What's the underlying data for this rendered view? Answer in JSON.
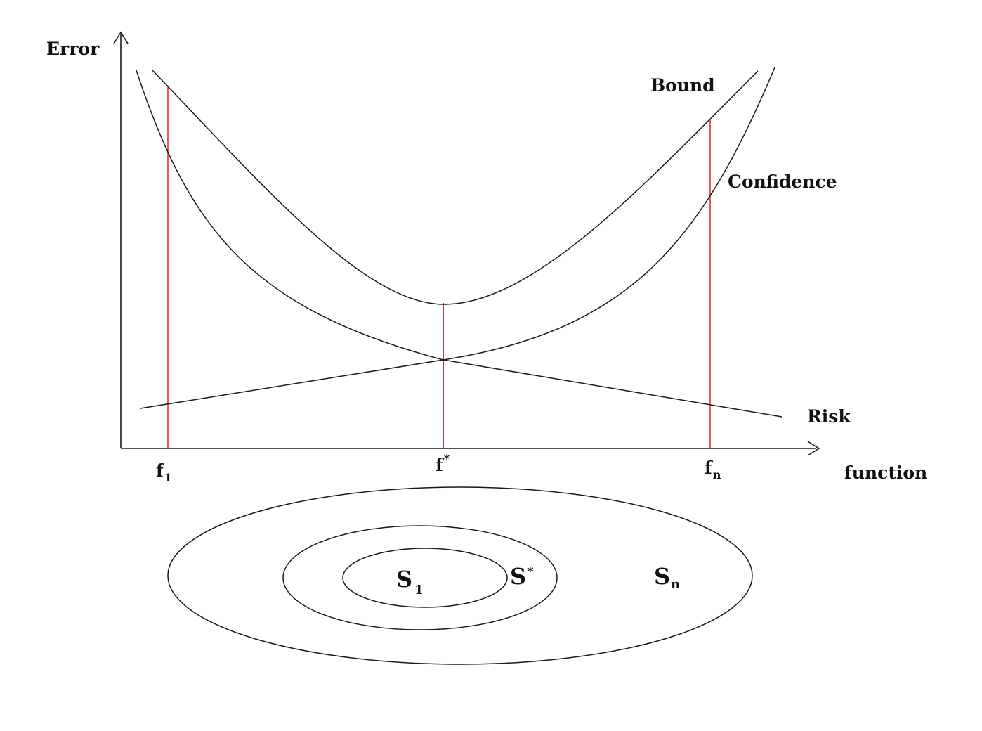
{
  "axes": {
    "y_label": "Error",
    "x_label": "function"
  },
  "curves": {
    "bound_label": "Bound",
    "confidence_label": "Confidence",
    "risk_label": "Risk"
  },
  "ticks": [
    {
      "base": "f",
      "mark": "1",
      "mark_type": "subscript"
    },
    {
      "base": "f",
      "mark": "*",
      "mark_type": "superscript"
    },
    {
      "base": "f",
      "mark": "n",
      "mark_type": "subscript"
    }
  ],
  "sets": [
    {
      "base": "S",
      "mark": "1",
      "mark_type": "subscript"
    },
    {
      "base": "S",
      "mark": "*",
      "mark_type": "superscript"
    },
    {
      "base": "S",
      "mark": "n",
      "mark_type": "subscript"
    }
  ],
  "colors": {
    "curve": "#1a1a1a",
    "marker_line": "#e8303a",
    "optimum_line": "#8b1a2a",
    "background": "#ffffff"
  }
}
